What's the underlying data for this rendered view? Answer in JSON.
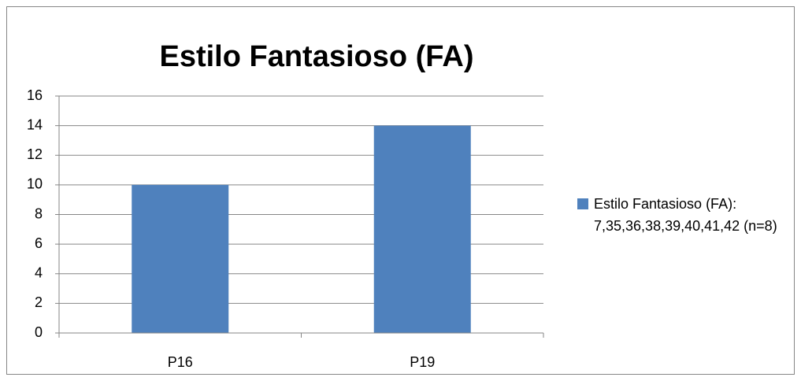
{
  "chart_data": {
    "type": "bar",
    "title": "Estilo Fantasioso (FA)",
    "categories": [
      "P16",
      "P19"
    ],
    "series": [
      {
        "name": "Estilo Fantasioso (FA): 7,35,36,38,39,40,41,42 (n=8)",
        "color": "#4f81bd",
        "values": [
          10,
          14
        ]
      }
    ],
    "ylim": [
      0,
      16
    ],
    "yticks": [
      0,
      2,
      4,
      6,
      8,
      10,
      12,
      14,
      16
    ],
    "grid": true,
    "legend": "right"
  }
}
